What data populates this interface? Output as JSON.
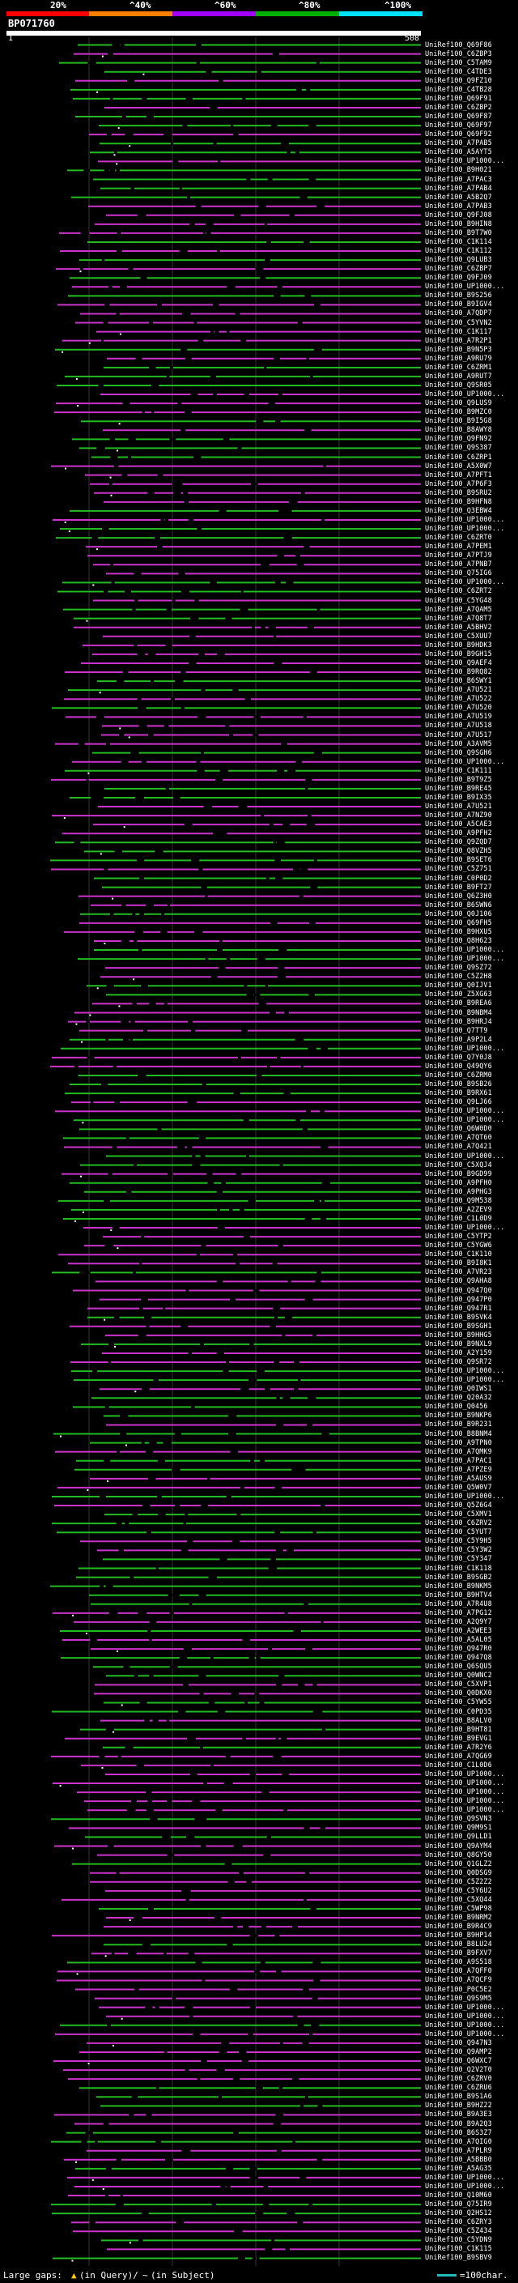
{
  "header": {
    "percent_labels": [
      "20%",
      "^40%",
      "^60%",
      "^80%",
      "^100%"
    ],
    "band_colors": [
      "#ff0000",
      "#ff8000",
      "#a000ff",
      "#00b000",
      "#00e0ff"
    ],
    "title": "BP071760",
    "ruler_start": "1",
    "ruler_end": "508"
  },
  "colors": {
    "background": "#000000",
    "hit_high": "#22bb22",
    "hit_low": "#cc33cc",
    "gap": "#ffffff",
    "grid": "#333333"
  },
  "hits": [
    "UniRef100_Q69F86",
    "UniRef100_C6ZBP3",
    "UniRef100_C5TAM9",
    "UniRef100_C4TDE3",
    "UniRef100_Q9FZ10",
    "UniRef100_C4TB28",
    "UniRef100_Q69F91",
    "UniRef100_C6ZBP2",
    "UniRef100_Q69F87",
    "UniRef100_Q69F97",
    "UniRef100_Q69F92",
    "UniRef100_A7PAB5",
    "UniRef100_A5AYT5",
    "UniRef100_UP1000...",
    "UniRef100_B9H021",
    "UniRef100_A7PAC3",
    "UniRef100_A7PAB4",
    "UniRef100_A5B2Q7",
    "UniRef100_A7PAB3",
    "UniRef100_Q9FJ08",
    "UniRef100_B9HIN8",
    "UniRef100_B9T7W0",
    "UniRef100_C1K114",
    "UniRef100_C1K112",
    "UniRef100_Q9LUB3",
    "UniRef100_C6ZBP7",
    "UniRef100_Q9FJ09",
    "UniRef100_UP1000...",
    "UniRef100_B9S256",
    "UniRef100_B9IGV4",
    "UniRef100_A7QDP7",
    "UniRef100_C5YVN2",
    "UniRef100_C1K117",
    "UniRef100_A7R2P1",
    "UniRef100_B9N5P3",
    "UniRef100_A9RU79",
    "UniRef100_C6ZRM1",
    "UniRef100_A9RUT7",
    "UniRef100_Q9SR05",
    "UniRef100_UP1000...",
    "UniRef100_Q9LUS9",
    "UniRef100_B9MZC0",
    "UniRef100_B9I5G8",
    "UniRef100_B8AWY8",
    "UniRef100_Q9FN92",
    "UniRef100_Q9S387",
    "UniRef100_C6ZRP1",
    "UniRef100_A5X0W7",
    "UniRef100_A7PFT1",
    "UniRef100_A7P6F3",
    "UniRef100_B9SRU2",
    "UniRef100_B9HFN8",
    "UniRef100_Q3EBW4",
    "UniRef100_UP1000...",
    "UniRef100_UP1000...",
    "UniRef100_C6ZRT0",
    "UniRef100_A7PEM1",
    "UniRef100_A7PTJ9",
    "UniRef100_A7PNB7",
    "UniRef100_Q75IG6",
    "UniRef100_UP1000...",
    "UniRef100_C6ZRT2",
    "UniRef100_C5YG48",
    "UniRef100_A7QAM5",
    "UniRef100_A7Q8T7",
    "UniRef100_A5BHV2",
    "UniRef100_C5XUU7",
    "UniRef100_B9HDK3",
    "UniRef100_B9GH15",
    "UniRef100_Q9AEF4",
    "UniRef100_B9RQ82",
    "UniRef100_B6SWY1",
    "UniRef100_A7U521",
    "UniRef100_A7U522",
    "UniRef100_A7U520",
    "UniRef100_A7U519",
    "UniRef100_A7U518",
    "UniRef100_A7U517",
    "UniRef100_A3AVM5",
    "UniRef100_Q9SGH6",
    "UniRef100_UP1000...",
    "UniRef100_C1K111",
    "UniRef100_B9T9Z5",
    "UniRef100_B9RE45",
    "UniRef100_B9IX35",
    "UniRef100_A7U521",
    "UniRef100_A7NZ90",
    "UniRef100_A5CAE3",
    "UniRef100_A9PFH2",
    "UniRef100_Q9ZQD7",
    "UniRef100_Q8VZH5",
    "UniRef100_B9SET6",
    "UniRef100_C5Z751",
    "UniRef100_C0P0D2",
    "UniRef100_B9FT27",
    "UniRef100_Q6Z3H0",
    "UniRef100_B6SWN6",
    "UniRef100_Q0J106",
    "UniRef100_Q69FH5",
    "UniRef100_B9HXU5",
    "UniRef100_Q8H623",
    "UniRef100_UP1000...",
    "UniRef100_UP1000...",
    "UniRef100_Q9SZ72",
    "UniRef100_C5Z2H8",
    "UniRef100_Q0IJV1",
    "UniRef100_Z5XG63",
    "UniRef100_B9REA6",
    "UniRef100_B9NBM4",
    "UniRef100_B9HRJ4",
    "UniRef100_Q7TT9",
    "UniRef100_A9P2L4",
    "UniRef100_UP1000...",
    "UniRef100_Q7Y0J8",
    "UniRef100_Q49QY6",
    "UniRef100_C6ZRM0",
    "UniRef100_B9SB26",
    "UniRef100_B9RX61",
    "UniRef100_Q9LJ66",
    "UniRef100_UP1000...",
    "UniRef100_UP1000...",
    "UniRef100_Q6W0D0",
    "UniRef100_A7QT60",
    "UniRef100_A7Q421",
    "UniRef100_UP1000...",
    "UniRef100_C5XQJ4",
    "UniRef100_B9GD99",
    "UniRef100_A9PFH0",
    "UniRef100_A9PHG3",
    "UniRef100_Q9M538",
    "UniRef100_A2ZEV9",
    "UniRef100_C1L0D9",
    "UniRef100_UP1000...",
    "UniRef100_C5YTP2",
    "UniRef100_C5YGW6",
    "UniRef100_C1K110",
    "UniRef100_B9I8K1",
    "UniRef100_A7VR23",
    "UniRef100_Q9AHA8",
    "UniRef100_Q947Q0",
    "UniRef100_Q947P0",
    "UniRef100_Q947R1",
    "UniRef100_B9SVK4",
    "UniRef100_B9SGH1",
    "UniRef100_B9HHG5",
    "UniRef100_B9NXL9",
    "UniRef100_A2Y159",
    "UniRef100_Q9SR72",
    "UniRef100_UP1000...",
    "UniRef100_UP1000...",
    "UniRef100_Q0IWS1",
    "UniRef100_Q20A32",
    "UniRef100_Q0456",
    "UniRef100_B9NKP6",
    "UniRef100_B9R231",
    "UniRef100_B8BNM4",
    "UniRef100_A9TPN0",
    "UniRef100_A7QMK9",
    "UniRef100_A7PAC1",
    "UniRef100_A7PZE9",
    "UniRef100_A5AUS9",
    "UniRef100_Q5W0V7",
    "UniRef100_UP1000...",
    "UniRef100_Q5Z6G4",
    "UniRef100_C5XMV1",
    "UniRef100_C6ZRV2",
    "UniRef100_C5YUT7",
    "UniRef100_C5Y9H5",
    "UniRef100_C5Y3W2",
    "UniRef100_C5Y347",
    "UniRef100_C1K118",
    "UniRef100_B9SGB2",
    "UniRef100_B9NKM5",
    "UniRef100_B9HTV4",
    "UniRef100_A7R4U8",
    "UniRef100_A7PG12",
    "UniRef100_A2Q9Y7",
    "UniRef100_A2WEE3",
    "UniRef100_A5AL05",
    "UniRef100_Q947R0",
    "UniRef100_Q947Q8",
    "UniRef100_Q6SQU5",
    "UniRef100_Q0WNC2",
    "UniRef100_C5XVP1",
    "UniRef100_Q0DKX0",
    "UniRef100_C5YW55",
    "UniRef100_C0PD35",
    "UniRef100_B8ALV0",
    "UniRef100_B9HT81",
    "UniRef100_B9EVG1",
    "UniRef100_A7R2Y6",
    "UniRef100_A7QG69",
    "UniRef100_C1L0D6",
    "UniRef100_UP1000...",
    "UniRef100_UP1000...",
    "UniRef100_UP1000...",
    "UniRef100_UP1000...",
    "UniRef100_UP1000...",
    "UniRef100_Q9SVN3",
    "UniRef100_Q9M9S1",
    "UniRef100_Q9LLD1",
    "UniRef100_Q9AYM4",
    "UniRef100_Q8GY50",
    "UniRef100_Q1GLZ2",
    "UniRef100_Q0DSG9",
    "UniRef100_C5Z2Z2",
    "UniRef100_C5Y6U2",
    "UniRef100_C5XQ44",
    "UniRef100_C5WP98",
    "UniRef100_B9NRM2",
    "UniRef100_B9R4C9",
    "UniRef100_B9HP14",
    "UniRef100_B8LU24",
    "UniRef100_B9FXV7",
    "UniRef100_A9S518",
    "UniRef100_A7QFF0",
    "UniRef100_A7QCF9",
    "UniRef100_P0C5E2",
    "UniRef100_Q9S9M5",
    "UniRef100_UP1000...",
    "UniRef100_UP1000...",
    "UniRef100_UP1000...",
    "UniRef100_UP1000...",
    "UniRef100_Q947N3",
    "UniRef100_Q9AMP2",
    "UniRef100_Q6WXC7",
    "UniRef100_Q2V2T0",
    "UniRef100_C6ZRV0",
    "UniRef100_C6ZRU6",
    "UniRef100_B9S1A6",
    "UniRef100_B9HZ22",
    "UniRef100_B9A3E3",
    "UniRef100_B9A2Q3",
    "UniRef100_B6S3Z7",
    "UniRef100_A7QIG0",
    "UniRef100_A7PLR9",
    "UniRef100_A5BBB0",
    "UniRef100_A5AG35",
    "UniRef100_UP1000...",
    "UniRef100_UP1000...",
    "UniRef100_Q10M60",
    "UniRef100_Q75IR9",
    "UniRef100_Q2HS12",
    "UniRef100_C6ZRY3",
    "UniRef100_C5Z434",
    "UniRef100_C5YDN9",
    "UniRef100_C1K115",
    "UniRef100_B9SBV9"
  ],
  "footer": {
    "large_gaps_label": "Large gaps:",
    "query_marker": "▲",
    "query_text": "(in Query)/",
    "subject_marker": "~",
    "subject_text": "(in Subject)",
    "scale_text": "=100char."
  }
}
